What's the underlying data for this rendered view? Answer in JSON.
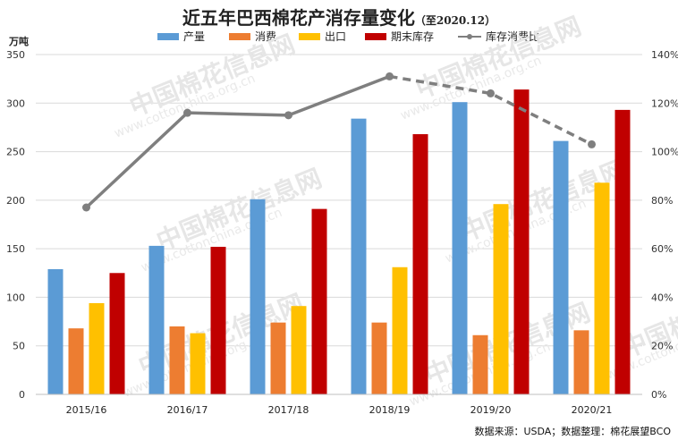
{
  "header": {
    "title": "近五年巴西棉花产消存量变化",
    "subtitle": "（至2020.12）",
    "unit": "万吨"
  },
  "source_note": "数据来源：USDA；数据整理：棉花展望BCO",
  "watermark": {
    "text": "中国棉花信息网",
    "url": "www.cottonchina.org.cn"
  },
  "legend": [
    {
      "name": "产量",
      "color": "#5b9bd5",
      "kind": "bar"
    },
    {
      "name": "消费",
      "color": "#ed7d31",
      "kind": "bar"
    },
    {
      "name": "出口",
      "color": "#ffc000",
      "kind": "bar"
    },
    {
      "name": "期末库存",
      "color": "#c00000",
      "kind": "bar"
    },
    {
      "name": "库存消费比",
      "color": "#7f7f7f",
      "kind": "line"
    }
  ],
  "chart_data": {
    "type": "bar",
    "categories": [
      "2015/16",
      "2016/17",
      "2017/18",
      "2018/19",
      "2019/20",
      "2020/21"
    ],
    "series": [
      {
        "name": "产量",
        "axis": "left",
        "color": "#5b9bd5",
        "values": [
          129,
          153,
          201,
          284,
          301,
          261
        ]
      },
      {
        "name": "消费",
        "axis": "left",
        "color": "#ed7d31",
        "values": [
          68,
          70,
          74,
          74,
          61,
          66
        ]
      },
      {
        "name": "出口",
        "axis": "left",
        "color": "#ffc000",
        "values": [
          94,
          63,
          91,
          131,
          196,
          218
        ]
      },
      {
        "name": "期末库存",
        "axis": "left",
        "color": "#c00000",
        "values": [
          125,
          152,
          191,
          268,
          314,
          293
        ]
      },
      {
        "name": "库存消费比",
        "axis": "right",
        "type": "line",
        "color": "#7f7f7f",
        "values": [
          77,
          116,
          115,
          131,
          124,
          103
        ],
        "dashed_from_index": 3
      }
    ],
    "y_left": {
      "min": 0,
      "max": 350,
      "ticks": [
        "0",
        "50",
        "100",
        "150",
        "200",
        "250",
        "300",
        "350"
      ]
    },
    "y_right": {
      "min": 0,
      "max": 140,
      "ticks": [
        "0%",
        "20%",
        "40%",
        "60%",
        "80%",
        "100%",
        "120%",
        "140%"
      ]
    },
    "grid": true,
    "legend_position": "top"
  }
}
